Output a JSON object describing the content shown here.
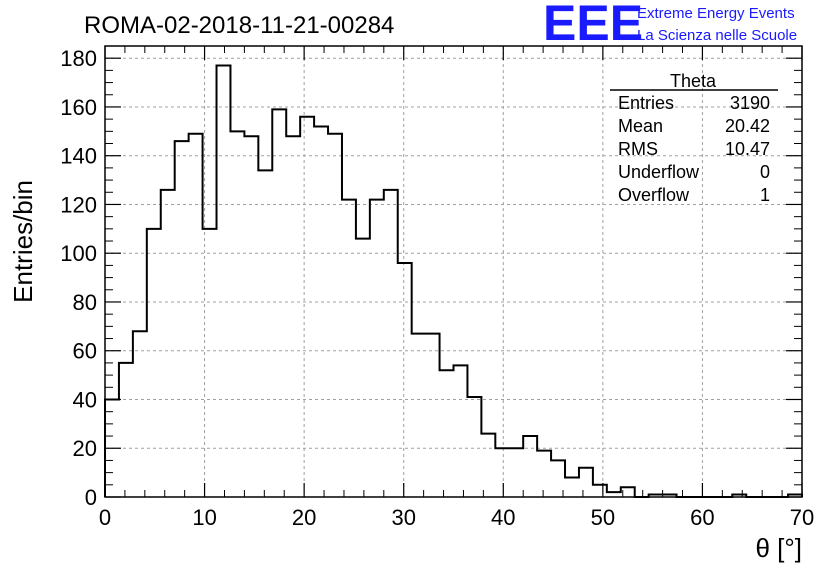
{
  "chart_data": {
    "type": "histogram",
    "title": "ROMA-02-2018-11-21-00284",
    "xlabel": "θ [°]",
    "ylabel": "Entries/bin",
    "xlim": [
      0,
      70
    ],
    "ylim": [
      0,
      185
    ],
    "bin_width": 1.4,
    "x_ticks": [
      0,
      10,
      20,
      30,
      40,
      50,
      60,
      70
    ],
    "y_ticks": [
      0,
      20,
      40,
      60,
      80,
      100,
      120,
      140,
      160,
      180
    ],
    "grid": true,
    "values": [
      40,
      55,
      68,
      110,
      126,
      146,
      149,
      110,
      177,
      150,
      148,
      134,
      159,
      148,
      156,
      152,
      149,
      122,
      106,
      122,
      126,
      96,
      67,
      67,
      52,
      54,
      41,
      26,
      20,
      20,
      25,
      19,
      15,
      8,
      12,
      5,
      2,
      4,
      0,
      1,
      1,
      0,
      0,
      0,
      0,
      1,
      0,
      0,
      0,
      1
    ]
  },
  "stats_box": {
    "title": "Theta",
    "rows": [
      {
        "label": "Entries",
        "value": "3190"
      },
      {
        "label": "Mean",
        "value": "20.42"
      },
      {
        "label": "RMS",
        "value": "10.47"
      },
      {
        "label": "Underflow",
        "value": "0"
      },
      {
        "label": "Overflow",
        "value": "1"
      }
    ]
  },
  "logo": {
    "mark": "EEE",
    "line1": "Extreme Energy Events",
    "line2": "La Scienza nelle Scuole"
  }
}
